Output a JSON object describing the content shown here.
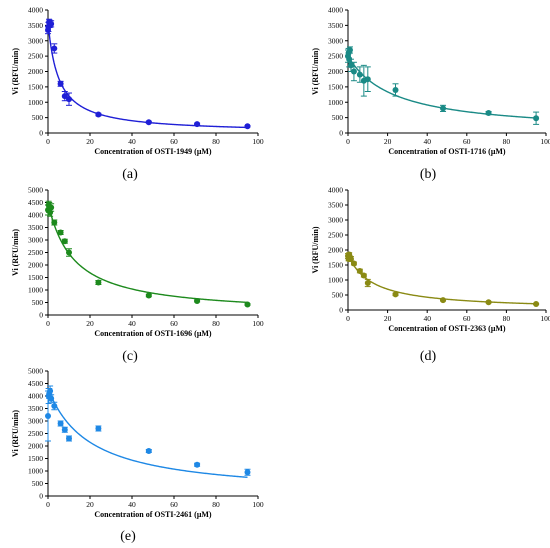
{
  "chart_data": [
    {
      "type": "scatter",
      "panel_label": "(a)",
      "xlabel": "Concentration of OSTI-1949 (μM)",
      "ylabel": "Vi (RFU/min)",
      "xlim": [
        0,
        100
      ],
      "ylim": [
        0,
        4000
      ],
      "xticks": [
        0,
        20,
        40,
        60,
        80,
        100
      ],
      "yticks": [
        0,
        500,
        1000,
        1500,
        2000,
        2500,
        3000,
        3500,
        4000
      ],
      "color": "#1f1fd6",
      "fit": {
        "v0": 3600,
        "k": 5.0
      },
      "points": [
        {
          "x": 0.0,
          "y": 3350,
          "err": 120
        },
        {
          "x": 0.2,
          "y": 3450,
          "err": 150
        },
        {
          "x": 0.5,
          "y": 3600,
          "err": 100
        },
        {
          "x": 0.8,
          "y": 3550,
          "err": 120
        },
        {
          "x": 1.5,
          "y": 3550,
          "err": 100
        },
        {
          "x": 3.0,
          "y": 2750,
          "err": 150
        },
        {
          "x": 6.0,
          "y": 1600,
          "err": 80
        },
        {
          "x": 8.0,
          "y": 1200,
          "err": 150
        },
        {
          "x": 10.0,
          "y": 1100,
          "err": 200
        },
        {
          "x": 24.0,
          "y": 600,
          "err": 40
        },
        {
          "x": 48.0,
          "y": 350,
          "err": 30
        },
        {
          "x": 71.0,
          "y": 290,
          "err": 30
        },
        {
          "x": 95.0,
          "y": 220,
          "err": 20
        }
      ]
    },
    {
      "type": "scatter",
      "panel_label": "(b)",
      "xlabel": "Concentration of OSTI-1716 (μM)",
      "ylabel": "Vi (RFU/min)",
      "xlim": [
        0,
        100
      ],
      "ylim": [
        0,
        4000
      ],
      "xticks": [
        0,
        20,
        40,
        60,
        80,
        100
      ],
      "yticks": [
        0,
        500,
        1000,
        1500,
        2000,
        2500,
        3000,
        3500,
        4000
      ],
      "color": "#1a8a86",
      "fit": {
        "v0": 2500,
        "k": 23.0
      },
      "points": [
        {
          "x": 0.0,
          "y": 2500,
          "err": 200
        },
        {
          "x": 0.3,
          "y": 2600,
          "err": 150
        },
        {
          "x": 0.6,
          "y": 2400,
          "err": 250
        },
        {
          "x": 1.0,
          "y": 2700,
          "err": 100
        },
        {
          "x": 1.5,
          "y": 2200,
          "err": 200
        },
        {
          "x": 3.0,
          "y": 2000,
          "err": 300
        },
        {
          "x": 6.0,
          "y": 1900,
          "err": 250
        },
        {
          "x": 8.0,
          "y": 1700,
          "err": 500
        },
        {
          "x": 10.0,
          "y": 1750,
          "err": 400
        },
        {
          "x": 24.0,
          "y": 1400,
          "err": 200
        },
        {
          "x": 48.0,
          "y": 800,
          "err": 100
        },
        {
          "x": 71.0,
          "y": 650,
          "err": 50
        },
        {
          "x": 95.0,
          "y": 480,
          "err": 200
        }
      ]
    },
    {
      "type": "scatter",
      "panel_label": "(c)",
      "xlabel": "Concentration of OSTI-1696 (μM)",
      "ylabel": "Vi (RFU/min)",
      "xlim": [
        0,
        100
      ],
      "ylim": [
        0,
        5000
      ],
      "xticks": [
        0,
        20,
        40,
        60,
        80,
        100
      ],
      "yticks": [
        0,
        500,
        1000,
        1500,
        2000,
        2500,
        3000,
        3500,
        4000,
        4500,
        5000
      ],
      "color": "#1d8a1d",
      "fit": {
        "v0": 4500,
        "k": 12.0
      },
      "points": [
        {
          "x": 0.0,
          "y": 4200,
          "err": 200
        },
        {
          "x": 0.3,
          "y": 4400,
          "err": 150
        },
        {
          "x": 0.6,
          "y": 4300,
          "err": 200
        },
        {
          "x": 1.0,
          "y": 4100,
          "err": 150
        },
        {
          "x": 1.5,
          "y": 4300,
          "err": 150
        },
        {
          "x": 3.0,
          "y": 3700,
          "err": 100
        },
        {
          "x": 6.0,
          "y": 3300,
          "err": 80
        },
        {
          "x": 8.0,
          "y": 2950,
          "err": 80
        },
        {
          "x": 10.0,
          "y": 2500,
          "err": 150
        },
        {
          "x": 24.0,
          "y": 1300,
          "err": 80
        },
        {
          "x": 48.0,
          "y": 780,
          "err": 50
        },
        {
          "x": 71.0,
          "y": 560,
          "err": 40
        },
        {
          "x": 95.0,
          "y": 420,
          "err": 30
        }
      ]
    },
    {
      "type": "scatter",
      "panel_label": "(d)",
      "xlabel": "Concentration of OSTI-2363 (μM)",
      "ylabel": "Vi (RFU/min)",
      "xlim": [
        0,
        100
      ],
      "ylim": [
        0,
        4000
      ],
      "xticks": [
        0,
        20,
        40,
        60,
        80,
        100
      ],
      "yticks": [
        0,
        500,
        1000,
        1500,
        2000,
        2500,
        3000,
        3500,
        4000
      ],
      "color": "#8a8a14",
      "fit": {
        "v0": 1850,
        "k": 12.0
      },
      "points": [
        {
          "x": 0.0,
          "y": 1800,
          "err": 80
        },
        {
          "x": 0.3,
          "y": 1700,
          "err": 60
        },
        {
          "x": 0.6,
          "y": 1850,
          "err": 60
        },
        {
          "x": 1.0,
          "y": 1750,
          "err": 50
        },
        {
          "x": 1.5,
          "y": 1700,
          "err": 80
        },
        {
          "x": 3.0,
          "y": 1550,
          "err": 50
        },
        {
          "x": 6.0,
          "y": 1300,
          "err": 60
        },
        {
          "x": 8.0,
          "y": 1150,
          "err": 50
        },
        {
          "x": 10.0,
          "y": 900,
          "err": 120
        },
        {
          "x": 24.0,
          "y": 520,
          "err": 40
        },
        {
          "x": 48.0,
          "y": 330,
          "err": 25
        },
        {
          "x": 71.0,
          "y": 260,
          "err": 20
        },
        {
          "x": 95.0,
          "y": 200,
          "err": 20
        }
      ]
    },
    {
      "type": "scatter",
      "panel_label": "(e)",
      "xlabel": "Concentration of OSTI-2461 (μM)",
      "ylabel": "Vi (RFU/min)",
      "xlim": [
        0,
        100
      ],
      "ylim": [
        0,
        5000
      ],
      "xticks": [
        0,
        20,
        40,
        60,
        80,
        100
      ],
      "yticks": [
        0,
        500,
        1000,
        1500,
        2000,
        2500,
        3000,
        3500,
        4000,
        4500,
        5000
      ],
      "color": "#1e88e5",
      "fit": {
        "v0": 4300,
        "k": 20.0
      },
      "points": [
        {
          "x": 0.0,
          "y": 3200,
          "err": 1000
        },
        {
          "x": 0.3,
          "y": 4000,
          "err": 300
        },
        {
          "x": 0.6,
          "y": 4100,
          "err": 200
        },
        {
          "x": 1.0,
          "y": 4200,
          "err": 200
        },
        {
          "x": 1.5,
          "y": 3900,
          "err": 150
        },
        {
          "x": 3.0,
          "y": 3600,
          "err": 150
        },
        {
          "x": 6.0,
          "y": 2900,
          "err": 100
        },
        {
          "x": 8.0,
          "y": 2650,
          "err": 100
        },
        {
          "x": 10.0,
          "y": 2300,
          "err": 100
        },
        {
          "x": 24.0,
          "y": 2700,
          "err": 100
        },
        {
          "x": 48.0,
          "y": 1800,
          "err": 60
        },
        {
          "x": 71.0,
          "y": 1250,
          "err": 60
        },
        {
          "x": 95.0,
          "y": 950,
          "err": 120
        }
      ]
    }
  ]
}
